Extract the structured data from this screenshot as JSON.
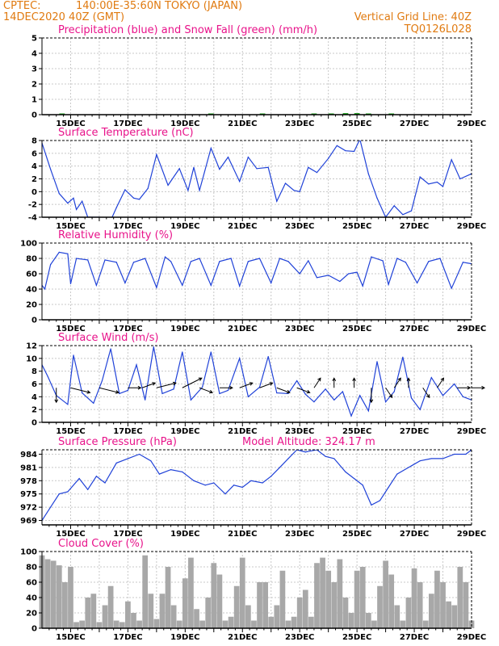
{
  "header": {
    "source": "CPTEC:",
    "location": "140:00E-35:60N  TOKYO (JAPAN)",
    "init_time": "14DEC2020 40Z (GMT)",
    "grid_note": "Vertical Grid Line: 40Z",
    "code": "TQ0126L028"
  },
  "colors": {
    "header": "#e07a10",
    "title": "#e8138a",
    "blue": "#2042d8",
    "green": "#1aa01a",
    "cloud": "#a8a8a8"
  },
  "x_axis": {
    "ticks": [
      "15DEC",
      "17DEC",
      "19DEC",
      "21DEC",
      "23DEC",
      "25DEC",
      "27DEC",
      "29DEC"
    ]
  },
  "chart_data": [
    {
      "id": "precip",
      "type": "bar",
      "title": "Precipitation (blue) and Snow Fall (green) (mm/h)",
      "ylabel": "mm/h",
      "ylim": [
        0,
        5
      ],
      "yticks": [
        "0",
        "1",
        "2",
        "3",
        "4",
        "5"
      ],
      "series": [
        {
          "name": "Precipitation",
          "color": "#2042d8",
          "x": [],
          "values": []
        },
        {
          "name": "Snow Fall",
          "color": "#1aa01a",
          "x": [
            14.7,
            19.9,
            21.7,
            23.5,
            24.1,
            24.6,
            25.0,
            25.4,
            26.2
          ],
          "values": [
            0.05,
            0.05,
            0.05,
            0.05,
            0.05,
            0.1,
            0.1,
            0.05,
            0.05
          ]
        }
      ]
    },
    {
      "id": "temp",
      "type": "line",
      "title": "Surface Temperature (nC)",
      "ylabel": "nC",
      "ylim": [
        -4,
        8
      ],
      "yticks": [
        "-4",
        "-2",
        "0",
        "2",
        "4",
        "6",
        "8"
      ],
      "x": [
        14.0,
        14.3,
        14.6,
        14.9,
        15.1,
        15.2,
        15.4,
        15.6,
        16.0,
        16.4,
        16.6,
        16.9,
        17.2,
        17.4,
        17.7,
        18.0,
        18.4,
        18.8,
        19.1,
        19.3,
        19.5,
        19.9,
        20.2,
        20.5,
        20.9,
        21.2,
        21.5,
        21.9,
        22.2,
        22.5,
        22.8,
        23.0,
        23.3,
        23.6,
        24.0,
        24.3,
        24.6,
        24.9,
        25.1,
        25.4,
        25.7,
        26.0,
        26.3,
        26.6,
        26.9,
        27.2,
        27.5,
        27.8,
        28.0,
        28.3,
        28.6,
        29.0
      ],
      "values": [
        7.6,
        3.5,
        -0.3,
        -1.8,
        -1.0,
        -2.8,
        -1.5,
        -4.0,
        -4.0,
        -4.5,
        -2.5,
        0.3,
        -1.0,
        -1.2,
        0.5,
        5.8,
        1.0,
        3.6,
        0.2,
        3.8,
        0.2,
        6.8,
        3.5,
        5.4,
        1.6,
        5.4,
        3.6,
        3.8,
        -1.5,
        1.3,
        0.2,
        0.0,
        3.8,
        3.0,
        5.2,
        7.2,
        6.4,
        6.3,
        8.2,
        2.8,
        -1.0,
        -4.0,
        -2.2,
        -3.6,
        -3.0,
        2.3,
        1.2,
        1.5,
        0.8,
        5.0,
        2.0,
        2.8
      ]
    },
    {
      "id": "rh",
      "type": "line",
      "title": "Relative Humidity (%)",
      "ylabel": "%",
      "ylim": [
        0,
        100
      ],
      "yticks": [
        "0",
        "20",
        "40",
        "60",
        "80",
        "100"
      ],
      "x": [
        14.0,
        14.1,
        14.3,
        14.6,
        14.9,
        15.0,
        15.2,
        15.6,
        15.9,
        16.2,
        16.6,
        16.9,
        17.2,
        17.6,
        18.0,
        18.3,
        18.5,
        18.9,
        19.2,
        19.5,
        19.9,
        20.2,
        20.6,
        20.9,
        21.2,
        21.6,
        22.0,
        22.3,
        22.6,
        23.0,
        23.3,
        23.6,
        24.0,
        24.4,
        24.7,
        25.0,
        25.2,
        25.5,
        25.9,
        26.1,
        26.4,
        26.7,
        27.1,
        27.5,
        27.9,
        28.3,
        28.7,
        29.0
      ],
      "values": [
        45,
        40,
        72,
        88,
        86,
        47,
        80,
        78,
        45,
        78,
        75,
        48,
        75,
        80,
        42,
        82,
        76,
        45,
        76,
        80,
        45,
        76,
        80,
        44,
        76,
        80,
        48,
        80,
        76,
        60,
        77,
        55,
        58,
        50,
        60,
        62,
        44,
        82,
        77,
        46,
        80,
        75,
        48,
        76,
        80,
        41,
        75,
        73
      ]
    },
    {
      "id": "wind",
      "type": "line",
      "title": "Surface Wind (m/s)",
      "ylabel": "m/s",
      "ylim": [
        0,
        12
      ],
      "yticks": [
        "0",
        "2",
        "4",
        "6",
        "8",
        "10",
        "12"
      ],
      "x": [
        14.0,
        14.2,
        14.5,
        14.9,
        15.1,
        15.4,
        15.8,
        16.1,
        16.4,
        16.7,
        17.0,
        17.3,
        17.6,
        17.9,
        18.2,
        18.6,
        18.9,
        19.2,
        19.6,
        19.9,
        20.2,
        20.5,
        20.9,
        21.2,
        21.6,
        21.9,
        22.2,
        22.6,
        22.9,
        23.2,
        23.5,
        23.9,
        24.2,
        24.5,
        24.8,
        25.1,
        25.4,
        25.7,
        26.0,
        26.3,
        26.6,
        26.9,
        27.2,
        27.6,
        28.0,
        28.4,
        28.7,
        29.0
      ],
      "values": [
        9.0,
        7.2,
        4.2,
        2.8,
        10.5,
        4.6,
        3.0,
        6.5,
        11.5,
        4.5,
        5.0,
        9.0,
        3.5,
        11.8,
        4.5,
        5.2,
        11.0,
        3.5,
        5.5,
        11.0,
        4.5,
        5.0,
        10.0,
        4.0,
        5.5,
        10.3,
        4.6,
        4.5,
        6.5,
        4.4,
        3.2,
        5.2,
        3.5,
        4.8,
        1.0,
        4.2,
        1.8,
        9.5,
        3.2,
        4.8,
        10.2,
        3.8,
        2.0,
        7.0,
        4.2,
        6.0,
        4.0,
        3.5
      ],
      "vectors": [
        {
          "x": 14.5,
          "u": 0,
          "v": -3
        },
        {
          "x": 15.0,
          "u": 3,
          "v": -1
        },
        {
          "x": 16.0,
          "u": 3,
          "v": -1
        },
        {
          "x": 17.0,
          "u": 2,
          "v": 0
        },
        {
          "x": 17.5,
          "u": 2,
          "v": 1
        },
        {
          "x": 18.0,
          "u": 3,
          "v": 1
        },
        {
          "x": 18.9,
          "u": 3,
          "v": 2
        },
        {
          "x": 19.5,
          "u": 2,
          "v": -1
        },
        {
          "x": 20.2,
          "u": 2,
          "v": 0
        },
        {
          "x": 20.9,
          "u": 2,
          "v": 1
        },
        {
          "x": 21.6,
          "u": 2,
          "v": 1
        },
        {
          "x": 22.2,
          "u": 2,
          "v": -1
        },
        {
          "x": 22.9,
          "u": 2,
          "v": -1
        },
        {
          "x": 23.5,
          "u": 1,
          "v": 2
        },
        {
          "x": 24.2,
          "u": 0,
          "v": 2
        },
        {
          "x": 24.9,
          "u": 0,
          "v": 2
        },
        {
          "x": 25.5,
          "u": 0,
          "v": -3
        },
        {
          "x": 26.0,
          "u": 1,
          "v": -2
        },
        {
          "x": 26.3,
          "u": 1,
          "v": 2
        },
        {
          "x": 26.8,
          "u": 0,
          "v": 2
        },
        {
          "x": 27.3,
          "u": 1,
          "v": -2
        },
        {
          "x": 27.8,
          "u": 1,
          "v": 2
        },
        {
          "x": 28.5,
          "u": 2,
          "v": 0
        },
        {
          "x": 29.0,
          "u": 2,
          "v": 0
        }
      ]
    },
    {
      "id": "pressure",
      "type": "line",
      "title": "Surface Pressure (hPa)",
      "subtitle": "Model Altitude: 324.17 m",
      "ylabel": "hPa",
      "ylim": [
        968,
        985
      ],
      "yticks": [
        "969",
        "972",
        "975",
        "978",
        "981",
        "984"
      ],
      "x": [
        14.0,
        14.3,
        14.6,
        14.9,
        15.3,
        15.6,
        15.9,
        16.2,
        16.6,
        17.0,
        17.4,
        17.8,
        18.1,
        18.5,
        18.9,
        19.3,
        19.7,
        20.0,
        20.4,
        20.7,
        21.0,
        21.3,
        21.7,
        22.0,
        22.3,
        22.6,
        22.9,
        23.2,
        23.6,
        23.9,
        24.2,
        24.6,
        24.9,
        25.2,
        25.5,
        25.8,
        26.1,
        26.4,
        26.8,
        27.2,
        27.6,
        28.0,
        28.4,
        28.8,
        29.0
      ],
      "values": [
        969.0,
        972.0,
        975.0,
        975.5,
        978.5,
        976.0,
        979.0,
        977.5,
        982.0,
        983.0,
        984.0,
        982.5,
        979.5,
        980.5,
        980.0,
        978.0,
        977.0,
        977.5,
        975.0,
        977.0,
        976.5,
        978.0,
        977.5,
        979.0,
        981.0,
        983.0,
        985.0,
        984.5,
        985.0,
        983.5,
        983.0,
        980.0,
        978.5,
        977.0,
        972.5,
        973.5,
        976.5,
        979.5,
        981.0,
        982.5,
        983.0,
        983.0,
        984.0,
        984.0,
        985.0
      ]
    },
    {
      "id": "cloud",
      "type": "bar",
      "title": "Cloud Cover (%)",
      "ylabel": "%",
      "ylim": [
        0,
        100
      ],
      "yticks": [
        "0",
        "20",
        "40",
        "60",
        "80",
        "100"
      ],
      "series": [
        {
          "name": "Cloud Cover",
          "color": "#a8a8a8",
          "x": [
            14.0,
            14.2,
            14.4,
            14.6,
            14.8,
            15.0,
            15.2,
            15.4,
            15.6,
            15.8,
            16.0,
            16.2,
            16.4,
            16.6,
            16.8,
            17.0,
            17.2,
            17.4,
            17.6,
            17.8,
            18.0,
            18.2,
            18.4,
            18.6,
            18.8,
            19.0,
            19.2,
            19.4,
            19.6,
            19.8,
            20.0,
            20.2,
            20.4,
            20.6,
            20.8,
            21.0,
            21.2,
            21.4,
            21.6,
            21.8,
            22.0,
            22.2,
            22.4,
            22.6,
            22.8,
            23.0,
            23.2,
            23.4,
            23.6,
            23.8,
            24.0,
            24.2,
            24.4,
            24.6,
            24.8,
            25.0,
            25.2,
            25.4,
            25.6,
            25.8,
            26.0,
            26.2,
            26.4,
            26.6,
            26.8,
            27.0,
            27.2,
            27.4,
            27.6,
            27.8,
            28.0,
            28.2,
            28.4,
            28.6,
            28.8,
            29.0
          ],
          "values": [
            95,
            90,
            88,
            82,
            60,
            80,
            8,
            10,
            40,
            45,
            8,
            30,
            55,
            10,
            8,
            35,
            20,
            10,
            95,
            45,
            12,
            45,
            80,
            30,
            10,
            65,
            92,
            25,
            10,
            40,
            85,
            70,
            10,
            15,
            55,
            92,
            30,
            10,
            60,
            60,
            15,
            30,
            75,
            10,
            15,
            40,
            50,
            15,
            85,
            92,
            75,
            60,
            90,
            40,
            20,
            75,
            80,
            20,
            10,
            55,
            88,
            70,
            30,
            10,
            40,
            78,
            60,
            10,
            45,
            75,
            60,
            35,
            30,
            80,
            60,
            10
          ]
        }
      ]
    }
  ]
}
